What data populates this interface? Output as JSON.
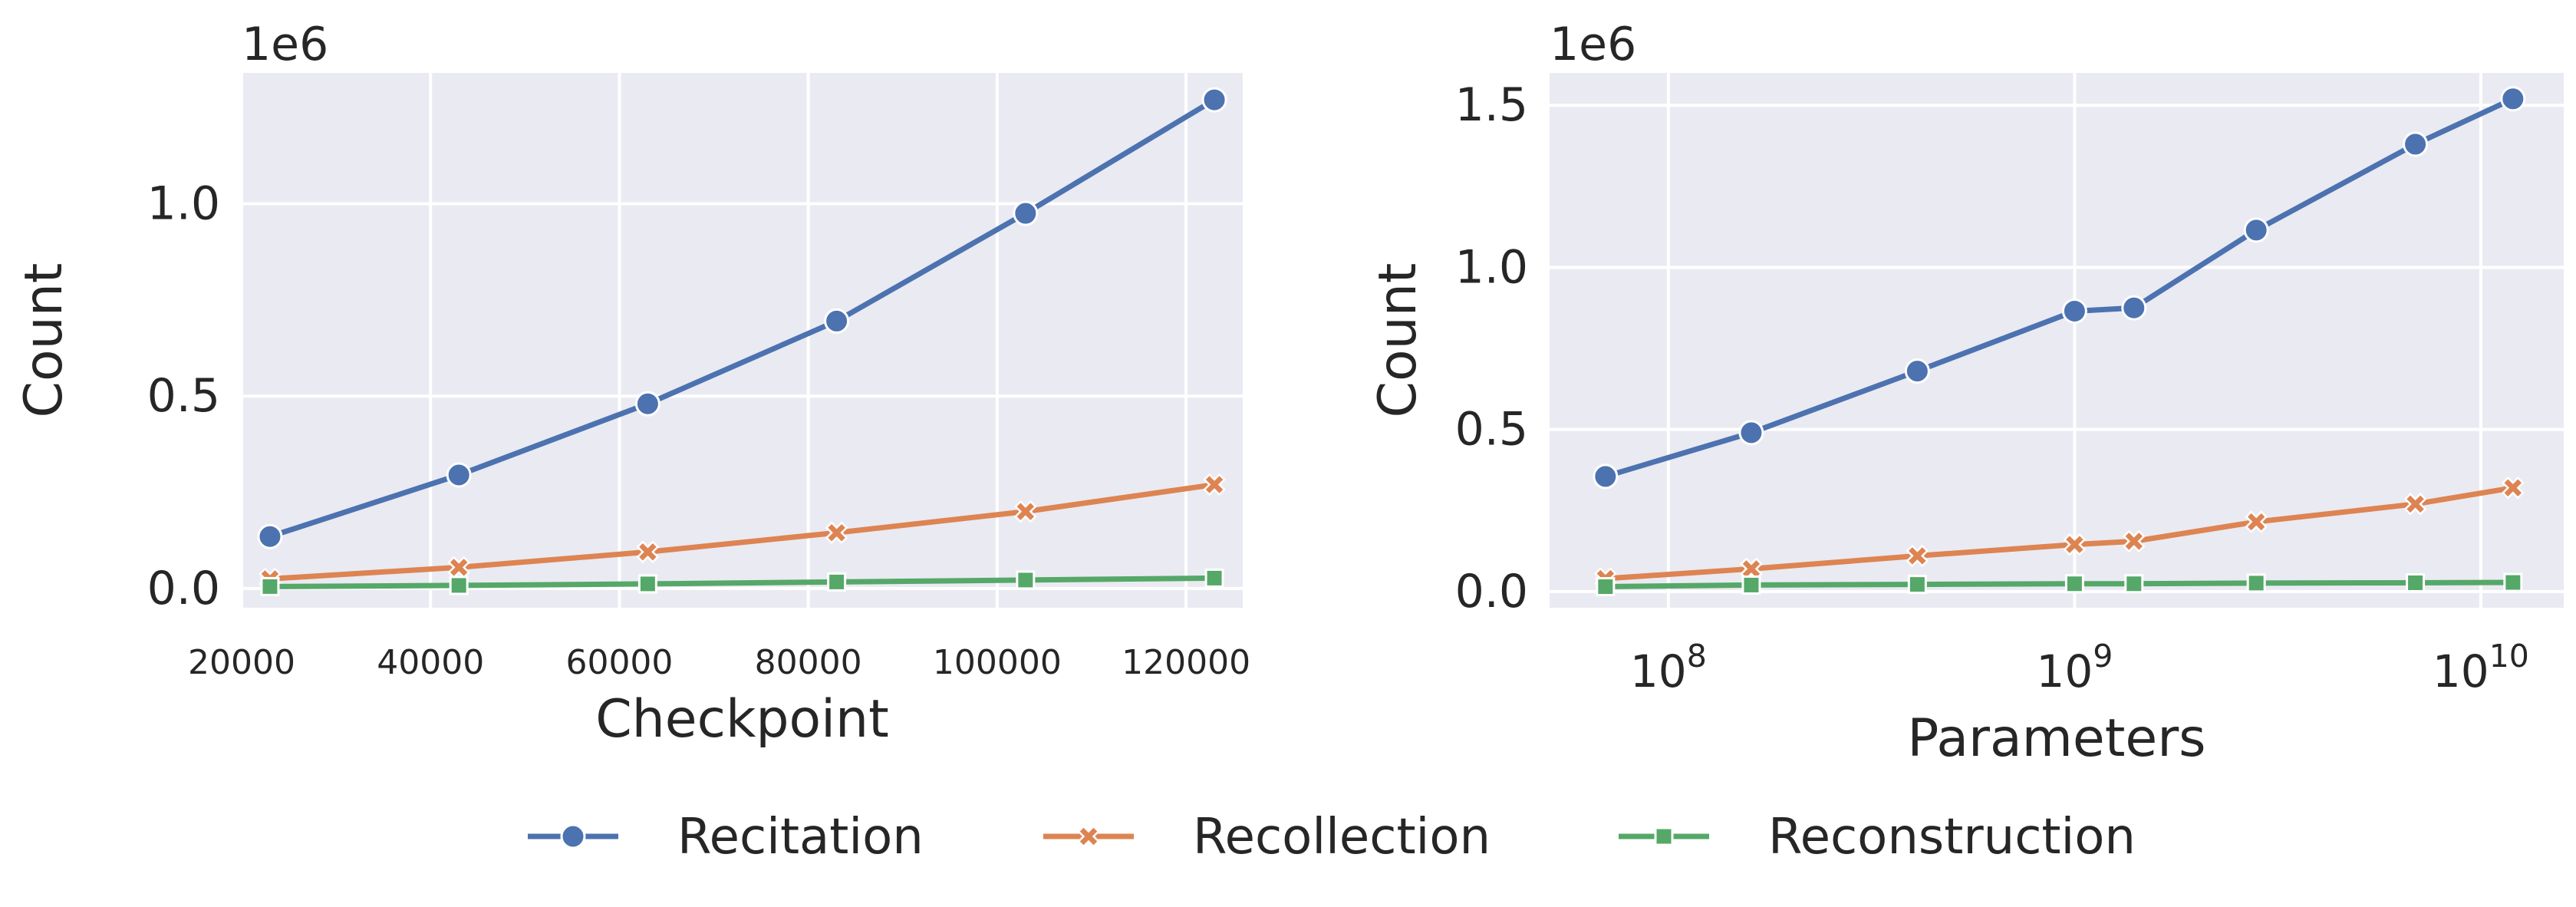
{
  "colors": {
    "recitation": "#4c72b0",
    "recollection": "#dd8452",
    "reconstruction": "#55a868",
    "plot_background": "#eaeaf2",
    "grid": "#ffffff"
  },
  "legend": {
    "placement": "bottom-center",
    "items": [
      {
        "label": "Recitation",
        "marker": "circle",
        "color": "#4c72b0"
      },
      {
        "label": "Recollection",
        "marker": "x",
        "color": "#dd8452"
      },
      {
        "label": "Reconstruction",
        "marker": "square",
        "color": "#55a868"
      }
    ]
  },
  "chart_data": [
    {
      "type": "line",
      "xlabel": "Checkpoint",
      "ylabel": "Count",
      "offset_label": "1e6",
      "x_scale": "linear",
      "xlim": [
        20000,
        126000
      ],
      "ylim": [
        -0.05,
        1.34
      ],
      "grid": true,
      "x_ticks": [
        {
          "value": 20000,
          "label": "20000"
        },
        {
          "value": 40000,
          "label": "40000"
        },
        {
          "value": 60000,
          "label": "60000"
        },
        {
          "value": 80000,
          "label": "80000"
        },
        {
          "value": 100000,
          "label": "100000"
        },
        {
          "value": 120000,
          "label": "120000"
        }
      ],
      "y_ticks": [
        {
          "value": 0.0,
          "label": "0.0"
        },
        {
          "value": 0.5,
          "label": "0.5"
        },
        {
          "value": 1.0,
          "label": "1.0"
        }
      ],
      "x": [
        23000,
        43000,
        63000,
        83000,
        103000,
        123000
      ],
      "series": [
        {
          "name": "Recitation",
          "marker": "circle",
          "values": [
            0.135,
            0.295,
            0.48,
            0.695,
            0.975,
            1.27
          ]
        },
        {
          "name": "Recollection",
          "marker": "x",
          "values": [
            0.025,
            0.055,
            0.095,
            0.145,
            0.2,
            0.27
          ]
        },
        {
          "name": "Reconstruction",
          "marker": "square",
          "values": [
            0.005,
            0.008,
            0.012,
            0.017,
            0.022,
            0.027
          ]
        }
      ]
    },
    {
      "type": "line",
      "xlabel": "Parameters",
      "ylabel": "Count",
      "offset_label": "1e6",
      "x_scale": "log",
      "xlim": [
        51000000,
        16000000000
      ],
      "ylim": [
        -0.05,
        1.6
      ],
      "grid": true,
      "x_ticks": [
        {
          "value": 100000000,
          "base": "10",
          "exp": "8"
        },
        {
          "value": 1000000000,
          "base": "10",
          "exp": "9"
        },
        {
          "value": 10000000000,
          "base": "10",
          "exp": "10"
        }
      ],
      "y_ticks": [
        {
          "value": 0.0,
          "label": "0.0"
        },
        {
          "value": 0.5,
          "label": "0.5"
        },
        {
          "value": 1.0,
          "label": "1.0"
        },
        {
          "value": 1.5,
          "label": "1.5"
        }
      ],
      "x": [
        70000000,
        160000000,
        410000000,
        1000000000,
        1400000000,
        2800000000,
        6900000000,
        12000000000
      ],
      "series": [
        {
          "name": "Recitation",
          "marker": "circle",
          "values": [
            0.355,
            0.49,
            0.68,
            0.865,
            0.875,
            1.115,
            1.38,
            1.52
          ]
        },
        {
          "name": "Recollection",
          "marker": "x",
          "values": [
            0.04,
            0.07,
            0.11,
            0.145,
            0.155,
            0.215,
            0.27,
            0.32
          ]
        },
        {
          "name": "Reconstruction",
          "marker": "square",
          "values": [
            0.015,
            0.02,
            0.022,
            0.024,
            0.024,
            0.026,
            0.027,
            0.028
          ]
        }
      ]
    }
  ]
}
